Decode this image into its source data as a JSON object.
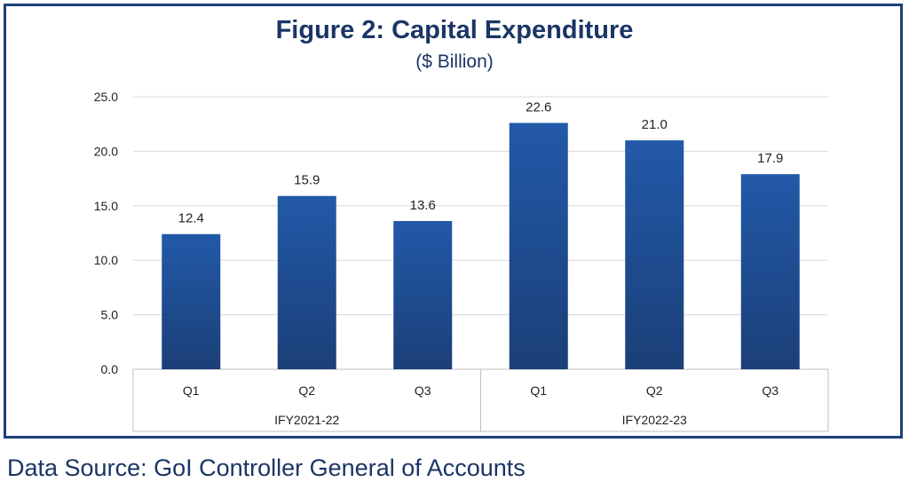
{
  "title": "Figure 2: Capital Expenditure",
  "subtitle": "($ Billion)",
  "source": "Data Source: GoI Controller General of Accounts",
  "colors": {
    "bar_top": "#2259a8",
    "bar_bottom": "#1b3f78",
    "frame": "#1f3f7a",
    "text": "#1b3565"
  },
  "chart_data": {
    "type": "bar",
    "title": "Figure 2: Capital Expenditure",
    "subtitle": "($ Billion)",
    "categories": [
      "Q1",
      "Q2",
      "Q3",
      "Q1",
      "Q2",
      "Q3"
    ],
    "groups": [
      {
        "label": "IFY2021-22",
        "categories": [
          "Q1",
          "Q2",
          "Q3"
        ]
      },
      {
        "label": "IFY2022-23",
        "categories": [
          "Q1",
          "Q2",
          "Q3"
        ]
      }
    ],
    "values": [
      12.4,
      15.9,
      13.6,
      22.6,
      21.0,
      17.9
    ],
    "value_labels": [
      "12.4",
      "15.9",
      "13.6",
      "22.6",
      "21.0",
      "17.9"
    ],
    "y_ticks": [
      "0.0",
      "5.0",
      "10.0",
      "15.0",
      "20.0",
      "25.0"
    ],
    "ylim": [
      0,
      25
    ],
    "grid": true,
    "legend": "none"
  }
}
